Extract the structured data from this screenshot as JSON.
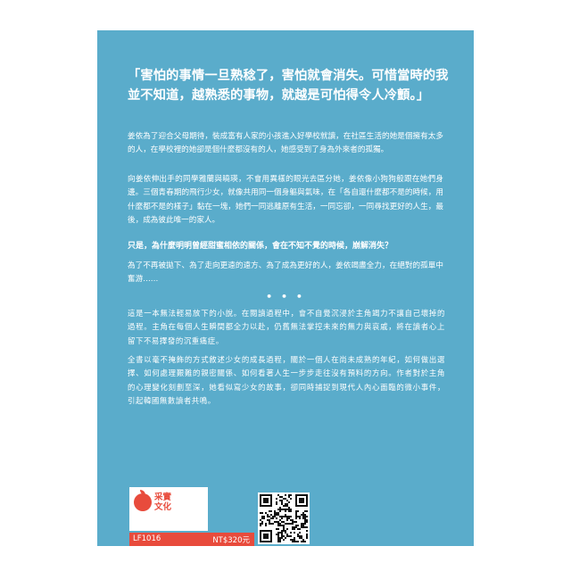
{
  "cover": {
    "background_color": "#5aaccb",
    "accent_color": "#e84b3c"
  },
  "quote": {
    "line1": "「害怕的事情一旦熟稔了，害怕就會消失。可惜當時的我",
    "line2": "並不知道，越熟悉的事物，就越是可怕得令人冷顫。」"
  },
  "paragraphs": {
    "p1": "姜依為了迎合父母期待，裝成富有人家的小孩進入好學校就讀，在社區生活的她是個擁有太多的人，在學校裡的她卻是個什麼都沒有的人，她感受到了身為外來者的孤獨。",
    "p2": "向姜依伸出手的同學雅蘭與曉瑛，不會用異樣的眼光去區分她，姜依像小狗狗般跟在她們身邊。三個青春期的飛行少女，就像共用同一個身軀與氣味，在「各自還什麼都不是的時候，用什麼都不是的樣子」黏在一塊，她們一同逃離原有生活，一同忘卻，一同尋找更好的人生，最後，成為彼此唯一的家人。",
    "p3": "只是，為什麼明明曾經甜蜜相依的關係，會在不知不覺的時候，崩解消失？",
    "p4": "為了不再被拋下、為了走向更遠的遠方、為了成為更好的人，姜依竭盡全力，在絕對的孤單中奮游……",
    "p5": "這是一本無法輕易放下的小說。在閱讀過程中，會不自覺沉浸於主角竭力不讓自己壞掉的過程。主角在每個人生瞬間都全力以赴，仍舊無法掌控未來的無力與哀戚，將在讀者心上留下不易擇發的沉重痛症。",
    "p6": "全書以毫不掩飾的方式敘述少女的成長過程，關於一個人在尚未成熟的年紀，如何做出選擇、如何處理艱難的親密關係、如何看著人生一步步走往沒有預料的方向。作者對於主角的心理變化刻劃至深，她看似寫少女的故事，卻同時捕捉到現代人內心面臨的微小事件，引起韓國無數讀者共鳴。"
  },
  "separator": "• • •",
  "publisher": {
    "name_line1": "采實",
    "name_line2": "文化",
    "logo_icon": "apple-leaf-icon"
  },
  "code_bar": {
    "code": "LF1016",
    "price": "NT$320元"
  },
  "qr": {
    "icon": "qr-code-icon"
  }
}
